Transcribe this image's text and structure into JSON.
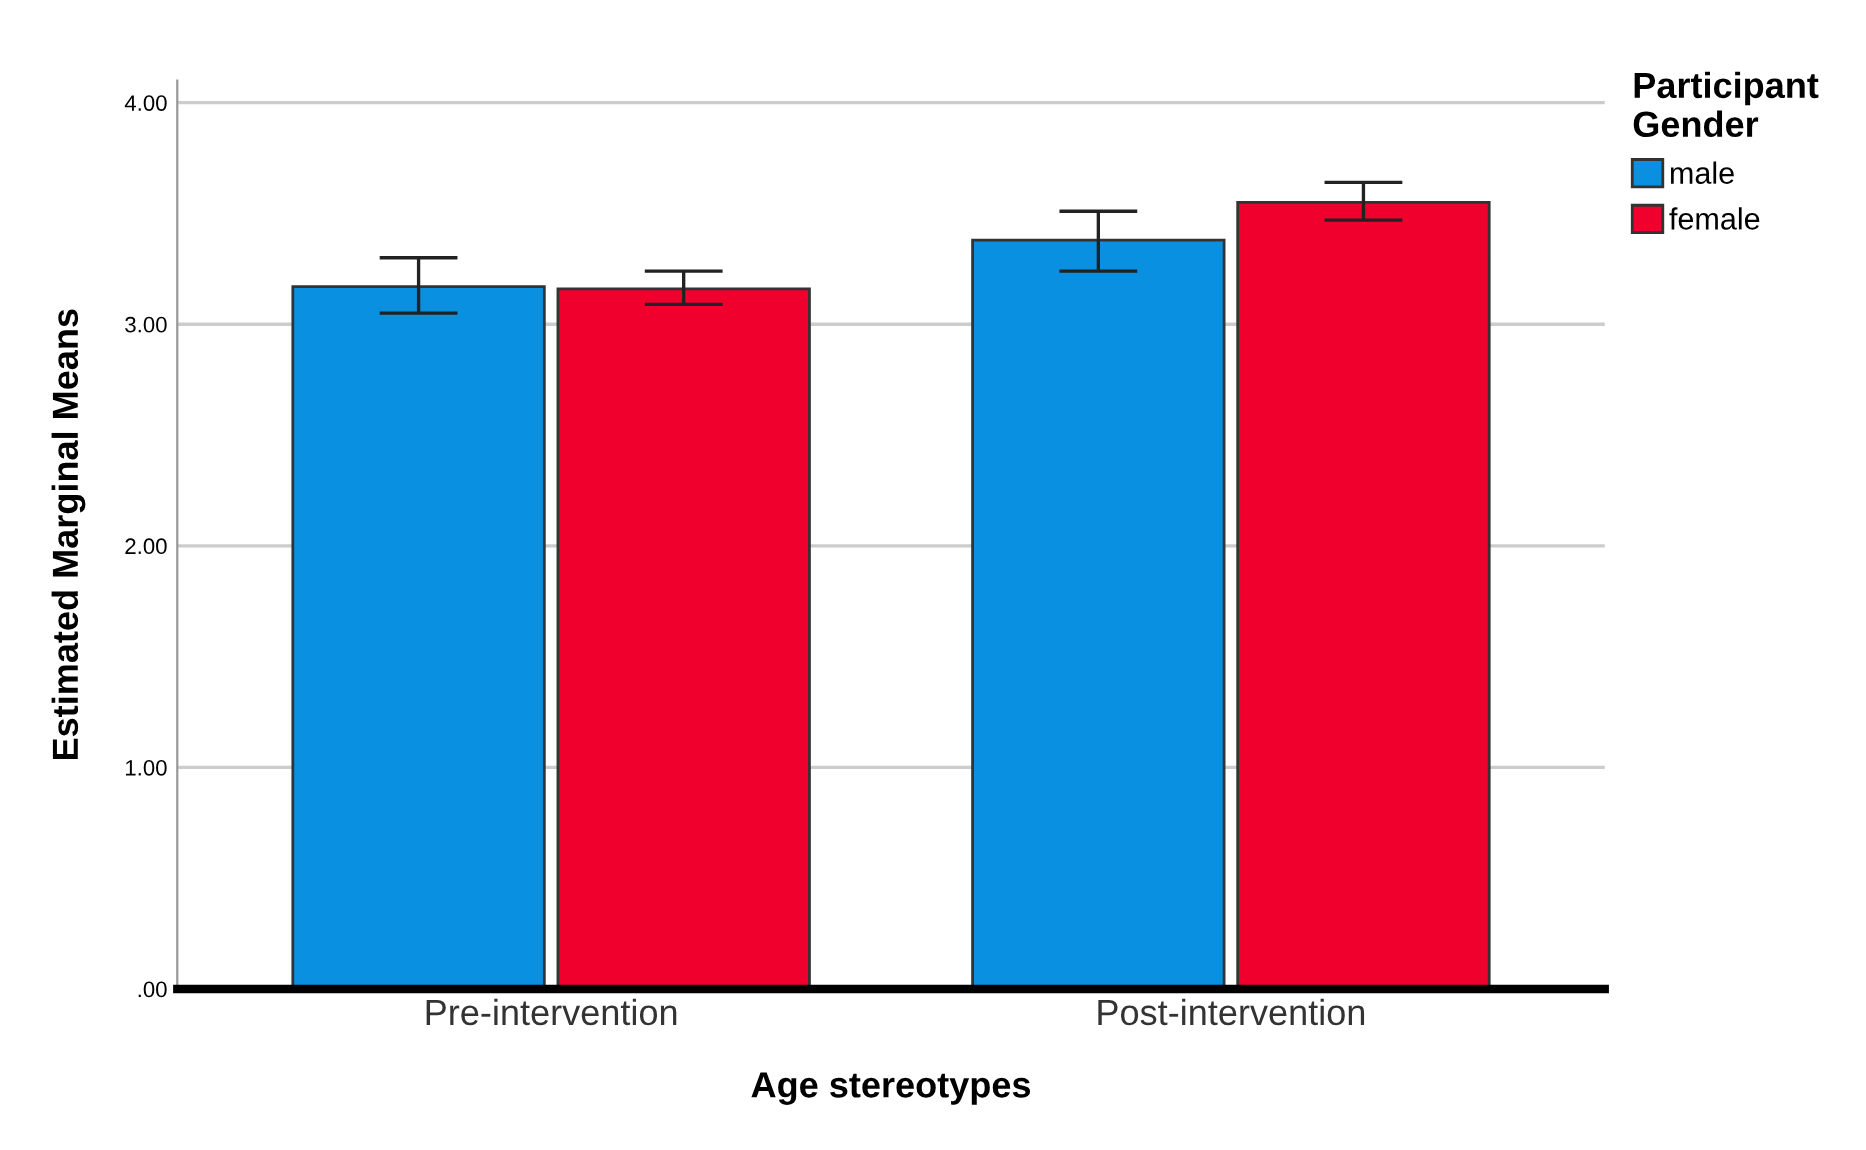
{
  "chart_data": {
    "type": "bar",
    "xlabel": "Age stereotypes",
    "ylabel": "Estimated Marginal Means",
    "legend_title": "Participant\nGender",
    "categories": [
      "Pre-intervention",
      "Post-intervention"
    ],
    "series": [
      {
        "name": "male",
        "color": "#0a90e0",
        "values": [
          3.17,
          3.38
        ],
        "errors": [
          [
            3.05,
            3.3
          ],
          [
            3.24,
            3.51
          ]
        ]
      },
      {
        "name": "female",
        "color": "#f0002c",
        "values": [
          3.16,
          3.55
        ],
        "errors": [
          [
            3.09,
            3.24
          ],
          [
            3.47,
            3.64
          ]
        ]
      }
    ],
    "ylim": [
      0,
      4.1
    ],
    "yticks": [
      {
        "value": 0,
        "label": ".00"
      },
      {
        "value": 1,
        "label": "1.00"
      },
      {
        "value": 2,
        "label": "2.00"
      },
      {
        "value": 3,
        "label": "3.00"
      },
      {
        "value": 4,
        "label": "4.00"
      }
    ],
    "grid": "y",
    "legend": "top right"
  }
}
